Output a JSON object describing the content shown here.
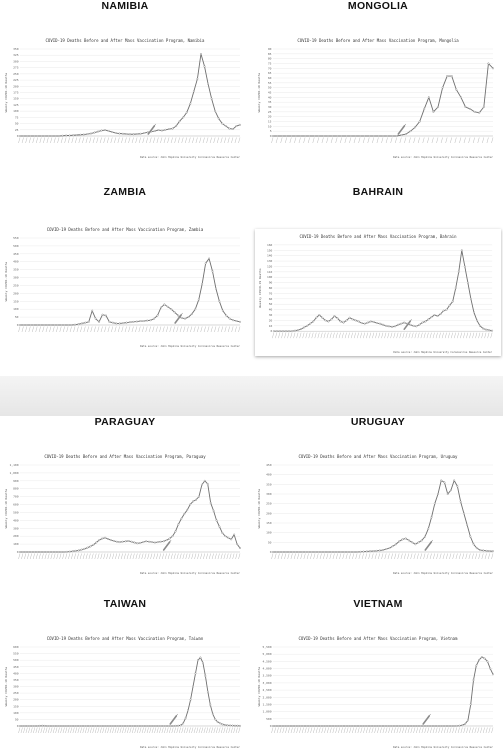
{
  "chart_data": [
    {
      "type": "line",
      "panel": "NAMIBIA",
      "title": "COVID-19 Deaths Before and After Mass Vaccination Program, Namibia",
      "xlabel": "",
      "ylabel": "Weekly COVID-19 Deaths",
      "ylim": [
        0,
        350
      ],
      "yticks": [
        0,
        25,
        50,
        75,
        100,
        125,
        150,
        175,
        200,
        225,
        250,
        275,
        300,
        325,
        350
      ],
      "source": "Data source: John Hopkins University Coronavirus Resource Center",
      "vax_index": 37,
      "values": [
        0,
        0,
        0,
        0,
        0,
        0,
        0,
        0,
        0,
        0,
        0,
        0,
        1,
        2,
        2,
        3,
        4,
        5,
        6,
        8,
        10,
        14,
        18,
        22,
        24,
        20,
        16,
        12,
        10,
        9,
        8,
        7,
        7,
        8,
        9,
        12,
        15,
        18,
        20,
        24,
        22,
        25,
        28,
        30,
        40,
        60,
        75,
        95,
        130,
        180,
        230,
        330,
        280,
        210,
        150,
        100,
        70,
        50,
        40,
        30,
        28,
        40,
        45
      ]
    },
    {
      "type": "line",
      "panel": "MONGOLIA",
      "title": "COVID-19 Deaths Before and After Mass Vaccination Program, Mongolia",
      "xlabel": "",
      "ylabel": "Weekly COVID-19 Deaths",
      "ylim": [
        0,
        90
      ],
      "yticks": [
        0,
        5,
        10,
        15,
        20,
        25,
        30,
        35,
        40,
        45,
        50,
        55,
        60,
        65,
        70,
        75,
        80,
        85,
        90
      ],
      "source": "Data source: John Hopkins University Coronavirus Resource Center",
      "vax_index": 28,
      "values": [
        0,
        0,
        0,
        0,
        0,
        0,
        0,
        0,
        0,
        0,
        0,
        0,
        0,
        0,
        0,
        0,
        0,
        0,
        0,
        0,
        0,
        0,
        0,
        0,
        0,
        0,
        0,
        0,
        1,
        2,
        5,
        9,
        15,
        28,
        40,
        25,
        30,
        50,
        62,
        62,
        48,
        40,
        30,
        28,
        25,
        24,
        30,
        75,
        70
      ]
    },
    {
      "type": "line",
      "panel": "ZAMBIA",
      "title": "COVID-19 Deaths Before and After Mass Vaccination Program, Zambia",
      "xlabel": "",
      "ylabel": "Weekly COVID-19 Deaths",
      "ylim": [
        0,
        550
      ],
      "yticks": [
        0,
        50,
        100,
        150,
        200,
        250,
        300,
        350,
        400,
        450,
        500,
        550
      ],
      "source": "Data source: John Hopkins University Coronavirus Resource Center",
      "vax_index": 46,
      "values": [
        0,
        0,
        0,
        0,
        0,
        0,
        0,
        0,
        0,
        0,
        0,
        0,
        0,
        0,
        0,
        0,
        2,
        5,
        10,
        15,
        20,
        90,
        40,
        20,
        65,
        60,
        20,
        15,
        10,
        10,
        12,
        15,
        18,
        20,
        22,
        25,
        25,
        28,
        30,
        40,
        60,
        110,
        130,
        115,
        100,
        80,
        60,
        45,
        40,
        50,
        70,
        100,
        160,
        260,
        390,
        420,
        340,
        230,
        150,
        90,
        60,
        40,
        30,
        25,
        20
      ]
    },
    {
      "type": "line",
      "panel": "BAHRAIN",
      "title": "COVID-19 Deaths Before and After Mass Vaccination Program, Bahrain",
      "xlabel": "",
      "ylabel": "Weekly COVID-19 Deaths",
      "ylim": [
        0,
        160
      ],
      "yticks": [
        0,
        10,
        20,
        30,
        40,
        50,
        60,
        70,
        80,
        90,
        100,
        110,
        120,
        130,
        140,
        150,
        160
      ],
      "source": "Data source: John Hopkins University Coronavirus Resource Center",
      "vax_index": 44,
      "values": [
        0,
        0,
        0,
        0,
        0,
        0,
        0,
        1,
        2,
        4,
        7,
        10,
        14,
        18,
        25,
        30,
        25,
        20,
        18,
        22,
        28,
        24,
        18,
        16,
        20,
        25,
        22,
        20,
        18,
        15,
        14,
        16,
        18,
        17,
        15,
        14,
        12,
        10,
        9,
        8,
        9,
        12,
        14,
        16,
        14,
        12,
        10,
        9,
        12,
        16,
        18,
        22,
        26,
        30,
        28,
        32,
        38,
        40,
        48,
        55,
        80,
        110,
        150,
        120,
        90,
        60,
        35,
        20,
        10,
        5,
        3,
        2,
        1
      ]
    },
    {
      "type": "line",
      "panel": "PARAGUAY",
      "title": "COVID-19 Deaths Before and After Mass Vaccination Program, Paraguay",
      "xlabel": "",
      "ylabel": "Weekly COVID-19 Deaths",
      "ylim": [
        0,
        1100
      ],
      "yticks": [
        0,
        100,
        200,
        300,
        400,
        500,
        600,
        700,
        800,
        900,
        1000,
        1100
      ],
      "source": "Data source: John Hopkins University Coronavirus Resource Center",
      "vax_index": 50,
      "values": [
        0,
        0,
        0,
        0,
        0,
        0,
        0,
        0,
        0,
        0,
        0,
        0,
        0,
        0,
        0,
        0,
        2,
        5,
        10,
        15,
        20,
        30,
        40,
        55,
        70,
        90,
        120,
        150,
        170,
        180,
        165,
        150,
        140,
        130,
        125,
        130,
        135,
        140,
        130,
        120,
        110,
        115,
        125,
        135,
        130,
        125,
        120,
        125,
        130,
        135,
        150,
        170,
        200,
        260,
        350,
        420,
        480,
        530,
        600,
        640,
        660,
        700,
        850,
        900,
        860,
        620,
        520,
        400,
        320,
        240,
        200,
        180,
        160,
        220,
        100,
        50
      ]
    },
    {
      "type": "line",
      "panel": "URUGUAY",
      "title": "COVID-19 Deaths Before and After Mass Vaccination Program, Uruguay",
      "xlabel": "",
      "ylabel": "Weekly COVID-19 Deaths",
      "ylim": [
        0,
        450
      ],
      "yticks": [
        0,
        50,
        100,
        150,
        200,
        250,
        300,
        350,
        400,
        450
      ],
      "source": "Data source: John Hopkins University Coronavirus Resource Center",
      "vax_index": 48,
      "values": [
        0,
        0,
        0,
        0,
        0,
        0,
        0,
        0,
        0,
        0,
        0,
        0,
        0,
        0,
        0,
        0,
        0,
        0,
        0,
        0,
        0,
        0,
        0,
        0,
        0,
        0,
        0,
        1,
        2,
        3,
        4,
        5,
        6,
        8,
        10,
        15,
        20,
        30,
        40,
        55,
        65,
        70,
        60,
        50,
        40,
        50,
        60,
        80,
        120,
        180,
        250,
        300,
        370,
        360,
        300,
        320,
        370,
        340,
        260,
        200,
        140,
        80,
        40,
        20,
        10,
        8,
        6,
        5,
        4
      ]
    },
    {
      "type": "line",
      "panel": "TAIWAN",
      "title": "COVID-19 Deaths Before and After Mass Vaccination Program, Taiwan",
      "xlabel": "",
      "ylabel": "Weekly COVID-19 Deaths",
      "ylim": [
        0,
        600
      ],
      "yticks": [
        0,
        50,
        100,
        150,
        200,
        250,
        300,
        350,
        400,
        450,
        500,
        550,
        600
      ],
      "source": "Data source: John Hopkins University Coronavirus Resource Center",
      "vax_index": 62,
      "values": [
        0,
        0,
        0,
        0,
        0,
        0,
        0,
        0,
        1,
        2,
        1,
        0,
        0,
        0,
        0,
        0,
        0,
        0,
        0,
        0,
        0,
        0,
        0,
        0,
        0,
        0,
        0,
        0,
        0,
        0,
        0,
        0,
        0,
        0,
        0,
        0,
        0,
        0,
        0,
        0,
        0,
        0,
        0,
        0,
        0,
        0,
        0,
        0,
        0,
        0,
        0,
        0,
        0,
        0,
        0,
        0,
        0,
        0,
        0,
        0,
        0,
        0,
        0,
        1,
        2,
        5,
        20,
        60,
        120,
        200,
        300,
        400,
        500,
        520,
        480,
        380,
        260,
        160,
        90,
        50,
        30,
        20,
        12,
        8,
        5,
        4,
        3,
        2,
        2,
        1
      ]
    },
    {
      "type": "line",
      "panel": "VIETNAM",
      "title": "COVID-19 Deaths Before and After Mass Vaccination Program, Vietnam",
      "xlabel": "",
      "ylabel": "Weekly COVID-19 Deaths",
      "ylim": [
        0,
        5500
      ],
      "yticks": [
        0,
        500,
        1000,
        1500,
        2000,
        2500,
        3000,
        3500,
        4000,
        4500,
        5000,
        5500
      ],
      "source": "Data source: John Hopkins University Coronavirus Resource Center",
      "vax_index": 55,
      "values": [
        0,
        0,
        0,
        0,
        0,
        0,
        0,
        0,
        0,
        0,
        0,
        0,
        0,
        0,
        0,
        0,
        0,
        0,
        0,
        0,
        0,
        0,
        0,
        0,
        0,
        0,
        0,
        0,
        0,
        0,
        0,
        0,
        0,
        0,
        0,
        0,
        0,
        0,
        0,
        0,
        0,
        0,
        0,
        0,
        0,
        0,
        0,
        0,
        0,
        0,
        0,
        0,
        0,
        0,
        0,
        0,
        0,
        0,
        0,
        0,
        0,
        0,
        0,
        0,
        0,
        1,
        5,
        20,
        60,
        150,
        400,
        1500,
        3200,
        4200,
        4600,
        4800,
        4700,
        4500,
        4000,
        3600
      ]
    }
  ]
}
